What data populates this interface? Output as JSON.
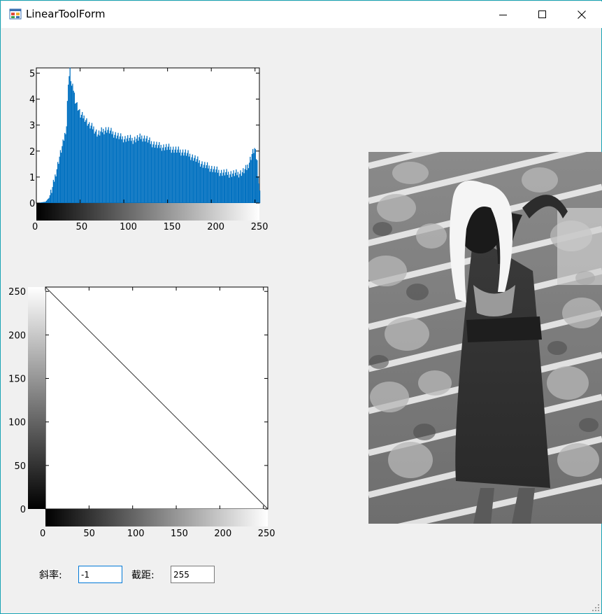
{
  "window": {
    "title": "LinearToolForm"
  },
  "icons": {
    "app": "app-icon",
    "minimize": "minimize-icon",
    "maximize": "maximize-icon",
    "close": "close-icon"
  },
  "controls": {
    "slope_label": "斜率:",
    "slope_value": "-1",
    "intercept_label": "截距:",
    "intercept_value": "255"
  },
  "colors": {
    "histogram_bar": "#0070c0",
    "title_border": "#19a4b5",
    "active_input": "#0078d7"
  },
  "chart_data": [
    {
      "type": "bar",
      "xlim": [
        0,
        255
      ],
      "ylim": [
        0,
        5.2
      ],
      "x_ticks": [
        "0",
        "50",
        "100",
        "150",
        "200",
        "250"
      ],
      "y_ticks": [
        "0",
        "1",
        "2",
        "3",
        "4",
        "5"
      ],
      "x": [
        0,
        10,
        14,
        18,
        22,
        26,
        30,
        34,
        36,
        38,
        40,
        42,
        44,
        46,
        50,
        55,
        60,
        65,
        70,
        75,
        80,
        85,
        90,
        95,
        100,
        105,
        110,
        115,
        120,
        125,
        130,
        140,
        150,
        160,
        170,
        180,
        190,
        200,
        210,
        220,
        230,
        235,
        240,
        243,
        246,
        249,
        252,
        255
      ],
      "values": [
        0,
        0.05,
        0.2,
        0.6,
        1.2,
        1.8,
        2.3,
        3.0,
        4.7,
        5.1,
        4.5,
        4.4,
        4.0,
        3.8,
        3.4,
        3.3,
        3.0,
        2.9,
        2.65,
        2.8,
        2.85,
        2.75,
        2.65,
        2.55,
        2.5,
        2.5,
        2.45,
        2.5,
        2.55,
        2.5,
        2.35,
        2.2,
        2.15,
        2.05,
        1.95,
        1.75,
        1.5,
        1.35,
        1.2,
        1.15,
        1.15,
        1.2,
        1.35,
        1.6,
        1.9,
        2.1,
        1.6,
        0.4
      ]
    },
    {
      "type": "line",
      "xlim": [
        0,
        255
      ],
      "ylim": [
        0,
        255
      ],
      "x_ticks": [
        "0",
        "50",
        "100",
        "150",
        "200",
        "250"
      ],
      "y_ticks": [
        "0",
        "50",
        "100",
        "150",
        "200",
        "250"
      ],
      "x": [
        0,
        255
      ],
      "values": [
        255,
        0
      ]
    }
  ]
}
